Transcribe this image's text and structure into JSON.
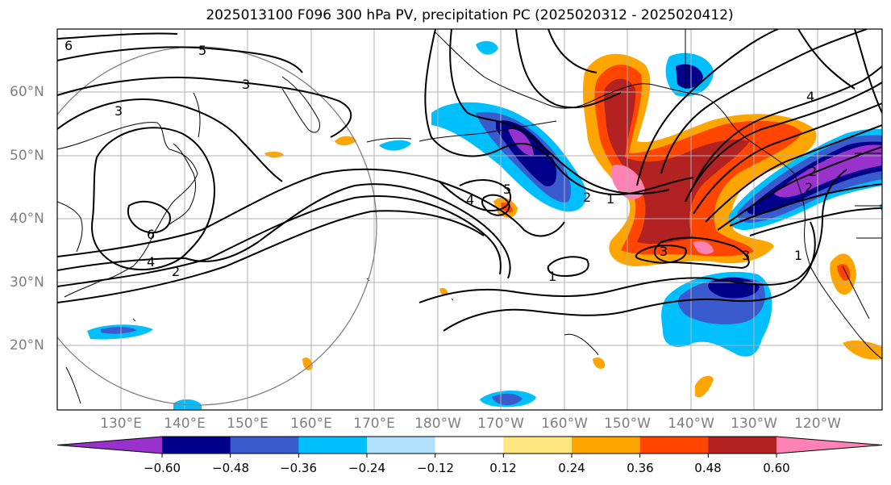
{
  "title": "2025013100 F096 300 hPa PV, precipitation PC (2025020312 - 2025020412)",
  "lat_labels": [
    "60°N",
    "50°N",
    "40°N",
    "30°N",
    "20°N"
  ],
  "lon_labels": [
    "130°E",
    "140°E",
    "150°E",
    "160°E",
    "170°E",
    "180°W",
    "170°W",
    "160°W",
    "150°W",
    "140°W",
    "130°W",
    "120°W"
  ],
  "colorbar": {
    "tick_labels": [
      "−0.60",
      "−0.48",
      "−0.36",
      "−0.24",
      "−0.12",
      "0.12",
      "0.24",
      "0.36",
      "0.48",
      "0.60"
    ],
    "colors": [
      "#9932cc",
      "#00008b",
      "#3a5bcd",
      "#00bfff",
      "#b0e2ff",
      "#ffffff",
      "#ffe680",
      "#ffa500",
      "#ff4500",
      "#b22222",
      "#ff82b4"
    ]
  },
  "pv_contour_labels": [
    "6",
    "5",
    "3",
    "3",
    "6",
    "4",
    "2",
    "4",
    "5",
    "2",
    "1",
    "4",
    "3",
    "3",
    "1",
    "1",
    "2",
    "2"
  ],
  "colors": {
    "axis_label": "#7f7f7f",
    "grid": "#b0b0b0",
    "contour": "#000000",
    "coast": "#000000",
    "circle": "#808080"
  }
}
